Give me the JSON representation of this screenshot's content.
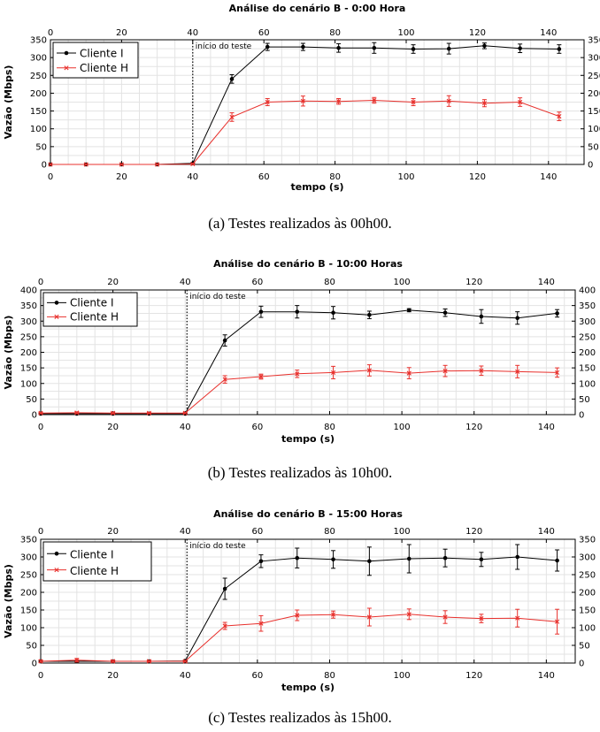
{
  "figure": {
    "charts": [
      {
        "type": "line",
        "title": "Análise do cenário B - 0:00 Hora",
        "xlabel": "tempo (s)",
        "ylabel": "Vazão (Mbps)",
        "xlim": [
          0,
          150
        ],
        "ylim": [
          0,
          350
        ],
        "x_ticks": [
          0,
          20,
          40,
          60,
          80,
          100,
          120,
          140
        ],
        "y_ticks": [
          0,
          50,
          100,
          150,
          200,
          250,
          300,
          350
        ],
        "grid": true,
        "legend_position": "top-left",
        "annotation": {
          "text": "início do teste",
          "x": 40
        },
        "caption": "(a)  Testes realizados às 00h00.",
        "series": [
          {
            "name": "Cliente I",
            "color": "#000000",
            "marker": "dot",
            "x": [
              0,
              10,
              20,
              30,
              40,
              51,
              61,
              71,
              81,
              91,
              102,
              112,
              122,
              132,
              143
            ],
            "y": [
              0,
              0,
              0,
              0,
              3,
              240,
              330,
              330,
              327,
              327,
              324,
              325,
              333,
              326,
              324
            ],
            "err": [
              0,
              0,
              0,
              0,
              2,
              12,
              10,
              10,
              12,
              15,
              12,
              15,
              8,
              12,
              12
            ]
          },
          {
            "name": "Cliente H",
            "color": "#e8302c",
            "marker": "x",
            "x": [
              0,
              10,
              20,
              30,
              40,
              51,
              61,
              71,
              81,
              91,
              102,
              112,
              122,
              132,
              143
            ],
            "y": [
              0,
              0,
              0,
              0,
              1,
              133,
              175,
              178,
              177,
              180,
              175,
              178,
              172,
              175,
              135
            ],
            "err": [
              0,
              0,
              0,
              0,
              2,
              12,
              10,
              14,
              8,
              8,
              10,
              15,
              10,
              12,
              12
            ]
          }
        ]
      },
      {
        "type": "line",
        "title": "Análise do cenário B - 10:00 Horas",
        "xlabel": "tempo (s)",
        "ylabel": "Vazão (Mbps)",
        "xlim": [
          0,
          148
        ],
        "ylim": [
          0,
          400
        ],
        "x_ticks": [
          0,
          20,
          40,
          60,
          80,
          100,
          120,
          140
        ],
        "y_ticks": [
          0,
          50,
          100,
          150,
          200,
          250,
          300,
          350,
          400
        ],
        "grid": true,
        "legend_position": "top-left",
        "annotation": {
          "text": "início do teste",
          "x": 40.5
        },
        "caption": "(b)  Testes realizados às 10h00.",
        "series": [
          {
            "name": "Cliente I",
            "color": "#000000",
            "marker": "dot",
            "x": [
              0,
              10,
              20,
              30,
              40,
              51,
              61,
              71,
              81,
              91,
              102,
              112,
              122,
              132,
              143
            ],
            "y": [
              3,
              3,
              3,
              3,
              3,
              238,
              330,
              330,
              327,
              320,
              335,
              327,
              315,
              310,
              325
            ],
            "err": [
              2,
              2,
              2,
              2,
              2,
              18,
              18,
              20,
              20,
              12,
              5,
              12,
              22,
              20,
              12
            ]
          },
          {
            "name": "Cliente H",
            "color": "#e8302c",
            "marker": "x",
            "x": [
              0,
              10,
              20,
              30,
              40,
              51,
              61,
              71,
              81,
              91,
              102,
              112,
              122,
              132,
              143
            ],
            "y": [
              5,
              6,
              5,
              5,
              5,
              113,
              122,
              131,
              135,
              142,
              133,
              140,
              141,
              138,
              135
            ],
            "err": [
              2,
              3,
              3,
              2,
              2,
              12,
              8,
              12,
              20,
              18,
              18,
              18,
              15,
              20,
              15
            ]
          }
        ]
      },
      {
        "type": "line",
        "title": "Análise do cenário B - 15:00 Horas",
        "xlabel": "tempo (s)",
        "ylabel": "Vazão (Mbps)",
        "xlim": [
          0,
          148
        ],
        "ylim": [
          0,
          350
        ],
        "x_ticks": [
          0,
          20,
          40,
          60,
          80,
          100,
          120,
          140
        ],
        "y_ticks": [
          0,
          50,
          100,
          150,
          200,
          250,
          300,
          350
        ],
        "grid": true,
        "legend_position": "top-left",
        "annotation": {
          "text": "início do teste",
          "x": 40.5
        },
        "caption": "(c)  Testes realizados às 15h00.",
        "series": [
          {
            "name": "Cliente I",
            "color": "#000000",
            "marker": "dot",
            "x": [
              0,
              10,
              20,
              30,
              40,
              51,
              61,
              71,
              81,
              91,
              102,
              112,
              122,
              132,
              143
            ],
            "y": [
              5,
              5,
              5,
              5,
              6,
              210,
              288,
              297,
              293,
              288,
              295,
              297,
              293,
              300,
              290
            ],
            "err": [
              2,
              2,
              2,
              2,
              2,
              30,
              18,
              28,
              25,
              40,
              40,
              25,
              20,
              35,
              30
            ]
          },
          {
            "name": "Cliente H",
            "color": "#e8302c",
            "marker": "x",
            "x": [
              0,
              10,
              20,
              30,
              40,
              51,
              61,
              71,
              81,
              91,
              102,
              112,
              122,
              132,
              143
            ],
            "y": [
              5,
              8,
              5,
              5,
              5,
              105,
              112,
              135,
              137,
              130,
              138,
              130,
              126,
              127,
              117
            ],
            "err": [
              3,
              5,
              3,
              2,
              2,
              10,
              22,
              15,
              10,
              25,
              15,
              18,
              12,
              25,
              35
            ]
          }
        ]
      }
    ]
  }
}
